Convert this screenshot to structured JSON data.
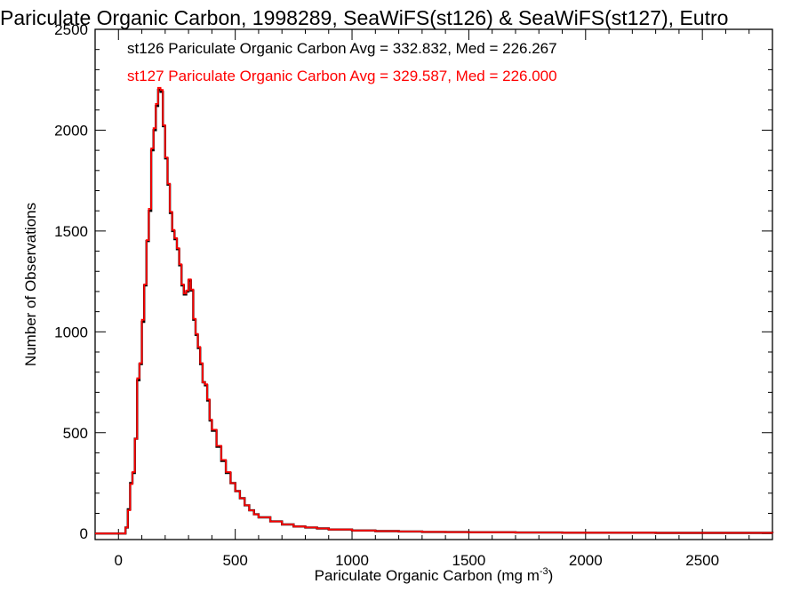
{
  "chart_data": {
    "type": "line",
    "title": "Pariculate Organic Carbon, 1998289, SeaWiFS(st126) & SeaWiFS(st127), Eutro",
    "xlabel": "Pariculate Organic Carbon (mg m",
    "xlabel_sup": "-3",
    "xlabel_end": ")",
    "ylabel": "Number of Observations",
    "xlim": [
      -100,
      2800
    ],
    "ylim": [
      -30,
      2500
    ],
    "xticks": [
      0,
      500,
      1000,
      1500,
      2000,
      2500
    ],
    "yticks": [
      0,
      500,
      1000,
      1500,
      2000,
      2500
    ],
    "xtick_labels": [
      "0",
      "500",
      "1000",
      "1500",
      "2000",
      "2500"
    ],
    "ytick_labels": [
      "0",
      "500",
      "1000",
      "1500",
      "2000",
      "2500"
    ],
    "grid": false,
    "legend_placement": "top-left",
    "series": [
      {
        "name": "st126",
        "legend": "st126 Pariculate Organic Carbon Avg = 332.832, Med = 226.267",
        "color": "#000000",
        "x": [
          -100,
          30,
          40,
          50,
          60,
          70,
          80,
          90,
          100,
          110,
          120,
          130,
          140,
          150,
          160,
          170,
          180,
          190,
          200,
          210,
          220,
          230,
          240,
          250,
          260,
          270,
          280,
          290,
          300,
          310,
          320,
          330,
          340,
          350,
          360,
          370,
          380,
          390,
          400,
          420,
          440,
          460,
          480,
          500,
          520,
          540,
          560,
          580,
          600,
          650,
          700,
          750,
          800,
          850,
          900,
          1000,
          1100,
          1200,
          1300,
          1400,
          1500,
          1700,
          1900,
          2100,
          2300,
          2500,
          2800
        ],
        "values": [
          0,
          30,
          120,
          250,
          300,
          470,
          760,
          840,
          1050,
          1230,
          1450,
          1600,
          1900,
          2000,
          2120,
          2200,
          2190,
          2020,
          1860,
          1730,
          1590,
          1500,
          1460,
          1410,
          1330,
          1230,
          1185,
          1200,
          1255,
          1205,
          1060,
          985,
          920,
          840,
          750,
          735,
          660,
          560,
          510,
          430,
          360,
          300,
          250,
          210,
          175,
          140,
          115,
          95,
          80,
          60,
          45,
          35,
          30,
          25,
          20,
          15,
          12,
          10,
          8,
          7,
          6,
          5,
          4,
          4,
          3,
          3,
          2
        ]
      },
      {
        "name": "st127",
        "legend": "st127 Pariculate Organic Carbon Avg = 329.587, Med = 226.000",
        "color": "#ff0000",
        "x": [
          -100,
          30,
          40,
          50,
          60,
          70,
          80,
          90,
          100,
          110,
          120,
          130,
          140,
          150,
          160,
          170,
          180,
          190,
          200,
          210,
          220,
          230,
          240,
          250,
          260,
          270,
          280,
          290,
          300,
          310,
          320,
          330,
          340,
          350,
          360,
          370,
          380,
          390,
          400,
          420,
          440,
          460,
          480,
          500,
          520,
          540,
          560,
          580,
          600,
          650,
          700,
          750,
          800,
          850,
          900,
          1000,
          1100,
          1200,
          1300,
          1400,
          1500,
          1700,
          1900,
          2100,
          2300,
          2500,
          2800
        ],
        "values": [
          0,
          30,
          115,
          245,
          305,
          470,
          770,
          845,
          1060,
          1235,
          1455,
          1610,
          1910,
          2010,
          2130,
          2210,
          2200,
          2025,
          1865,
          1735,
          1595,
          1505,
          1465,
          1415,
          1335,
          1235,
          1190,
          1205,
          1260,
          1210,
          1065,
          990,
          925,
          845,
          750,
          740,
          665,
          565,
          515,
          435,
          365,
          305,
          250,
          210,
          175,
          140,
          115,
          95,
          80,
          60,
          45,
          35,
          30,
          25,
          20,
          15,
          12,
          10,
          8,
          7,
          6,
          5,
          4,
          4,
          3,
          3,
          2
        ]
      }
    ]
  }
}
